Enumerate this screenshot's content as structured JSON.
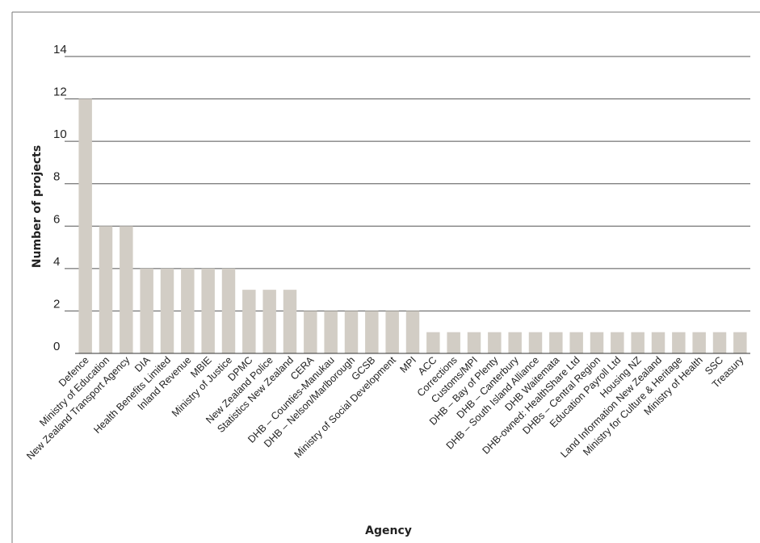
{
  "chart_data": {
    "type": "bar",
    "title": "",
    "xlabel": "Agency",
    "ylabel": "Number of projects",
    "ylim": [
      0,
      14
    ],
    "yticks": [
      0,
      2,
      4,
      6,
      8,
      10,
      12,
      14
    ],
    "ytick_labels": [
      "0",
      "2",
      "4",
      "6",
      "8",
      "10",
      "12",
      "14"
    ],
    "grid": true,
    "legend": "none",
    "bar_color": "#d2cdc5",
    "categories": [
      "Defence",
      "Ministry of Education",
      "New Zealand Transport Agency",
      "DIA",
      "Health Benefits Limited",
      "Inland Revenue",
      "MBIE",
      "Ministry of Justice",
      "DPMC",
      "New Zealand Police",
      "Statistics New Zealand",
      "CERA",
      "DHB – Counties-Manukau",
      "DHB – Nelson/Marlborough",
      "GCSB",
      "Ministry of Social Development",
      "MPI",
      "ACC",
      "Corrections",
      "Customs/MPI",
      "DHB – Bay of Plenty",
      "DHB – Canterbury",
      "DHB – South Island Alliance",
      "DHB Waitemata",
      "DHB-owned: HealthShare Ltd",
      "DHBs – Central Region",
      "Education Payroll Ltd",
      "Housing NZ",
      "Land Information New Zealand",
      "Ministry for Culture & Heritage",
      "Ministry of Health",
      "SSC",
      "Treasury"
    ],
    "values": [
      12,
      6,
      6,
      4,
      4,
      4,
      4,
      4,
      3,
      3,
      3,
      2,
      2,
      2,
      2,
      2,
      2,
      1,
      1,
      1,
      1,
      1,
      1,
      1,
      1,
      1,
      1,
      1,
      1,
      1,
      1,
      1,
      1
    ]
  }
}
